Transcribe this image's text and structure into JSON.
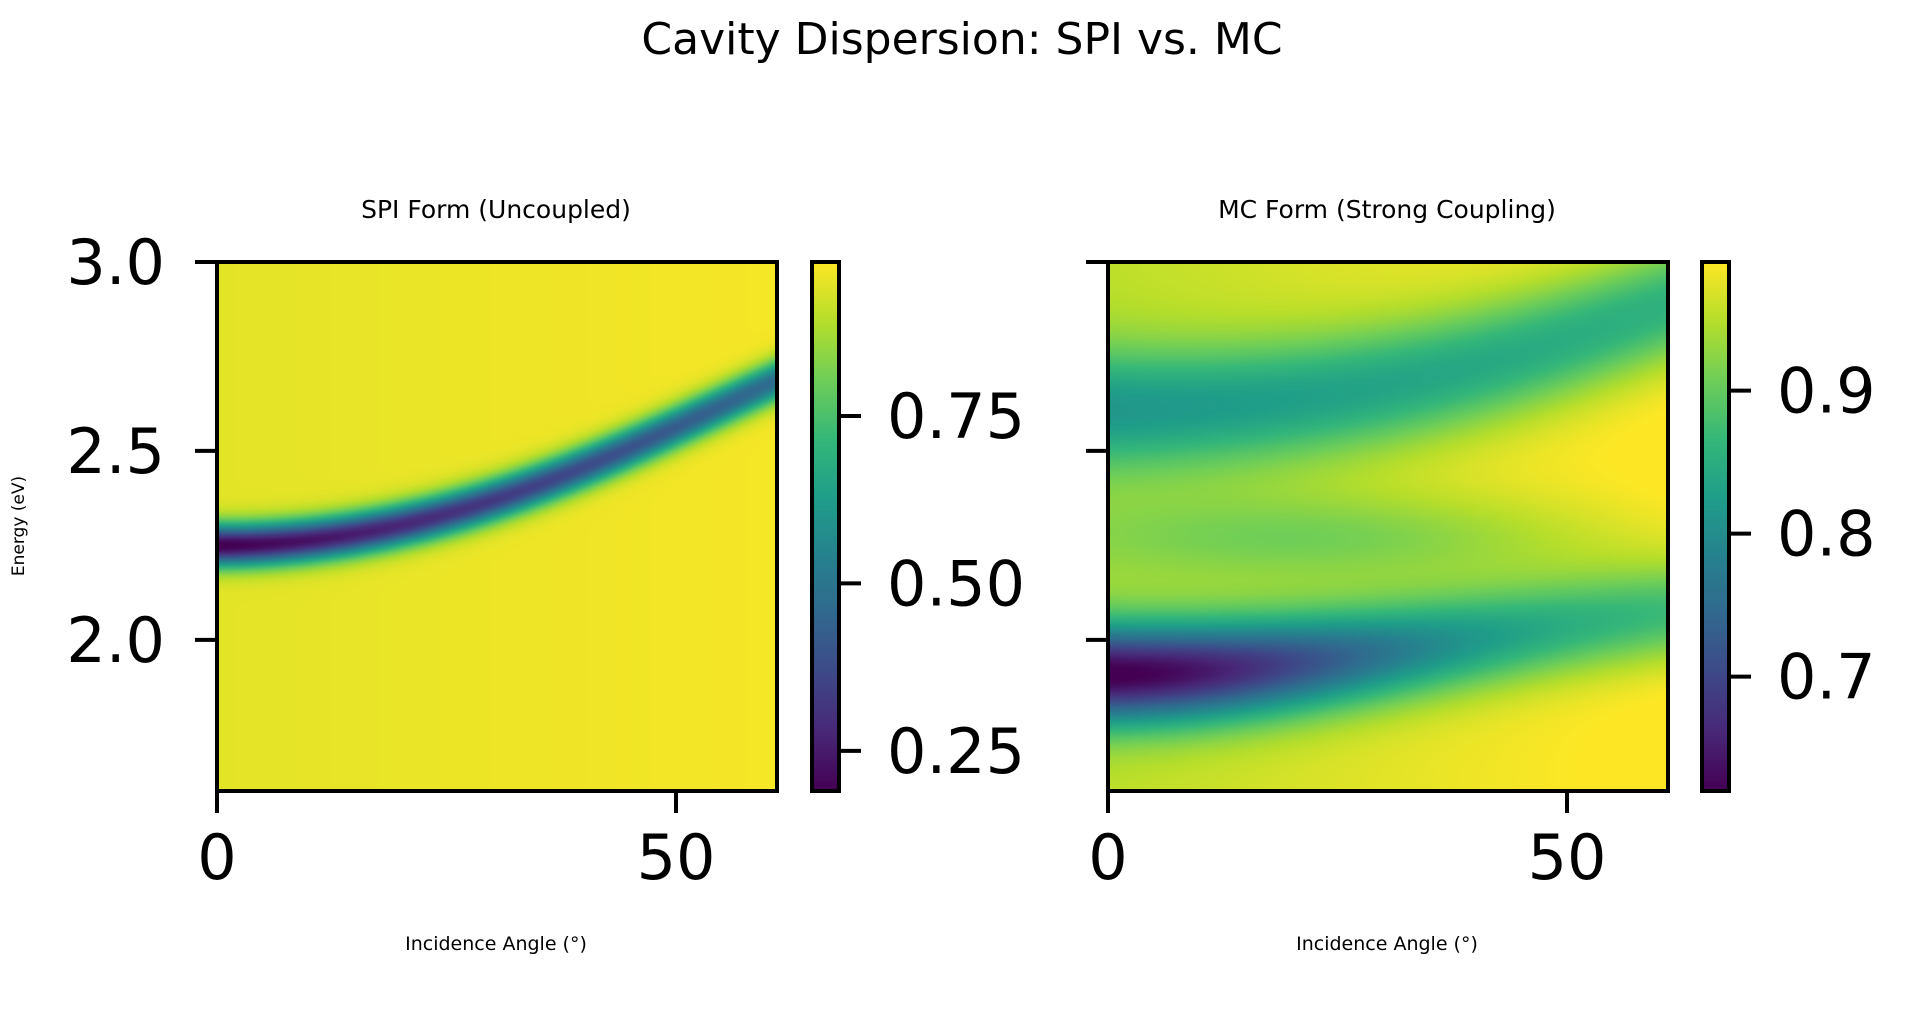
{
  "figure": {
    "title": "Cavity Dispersion: SPI vs. MC"
  },
  "colormap": {
    "name": "viridis",
    "stops": [
      "#440154",
      "#482878",
      "#3e4989",
      "#31688e",
      "#26828e",
      "#1f9e89",
      "#35b779",
      "#6ece58",
      "#b5de2b",
      "#fde725"
    ]
  },
  "chart_data": [
    {
      "type": "heatmap",
      "title": "SPI Form (Uncoupled)",
      "xlabel": "Incidence Angle (°)",
      "ylabel": "Energy (eV)",
      "xlim": [
        0,
        61
      ],
      "ylim": [
        1.6,
        3.0
      ],
      "xticks": [
        0,
        50
      ],
      "xtick_labels": [
        "0",
        "50"
      ],
      "yticks": [
        2.0,
        2.5,
        3.0
      ],
      "ytick_labels": [
        "2.0",
        "2.5",
        "3.0"
      ],
      "show_y_tick_labels": true,
      "grid": false,
      "model": {
        "kind": "uncoupled",
        "E0": 2.25,
        "n_eff": 1.6,
        "width": 0.055,
        "depth": 0.77,
        "base": 0.96,
        "slope": 0.00035
      },
      "colorbar": {
        "vmin": 0.19,
        "vmax": 0.98,
        "ticks": [
          0.25,
          0.5,
          0.75
        ],
        "tick_labels": [
          "0.25",
          "0.50",
          "0.75"
        ]
      }
    },
    {
      "type": "heatmap",
      "title": "MC Form (Strong Coupling)",
      "xlabel": "Incidence Angle (°)",
      "ylabel": "",
      "xlim": [
        0,
        61
      ],
      "ylim": [
        1.6,
        3.0
      ],
      "xticks": [
        0,
        50
      ],
      "xtick_labels": [
        "0",
        "50"
      ],
      "yticks": [
        2.0,
        2.5,
        3.0
      ],
      "ytick_labels": [
        "2.0",
        "2.5",
        "3.0"
      ],
      "show_y_tick_labels": false,
      "grid": false,
      "model": {
        "kind": "coupled",
        "E0": 2.25,
        "Ex": 2.27,
        "n_eff": 1.6,
        "coupling": 0.35,
        "upper_width": 0.16,
        "upper_depth": 0.14,
        "lower_width": 0.13,
        "lower_depth": 0.34,
        "base": 0.975,
        "slope": 0.0007
      },
      "colorbar": {
        "vmin": 0.62,
        "vmax": 0.99,
        "ticks": [
          0.7,
          0.8,
          0.9
        ],
        "tick_labels": [
          "0.7",
          "0.8",
          "0.9"
        ]
      }
    }
  ]
}
